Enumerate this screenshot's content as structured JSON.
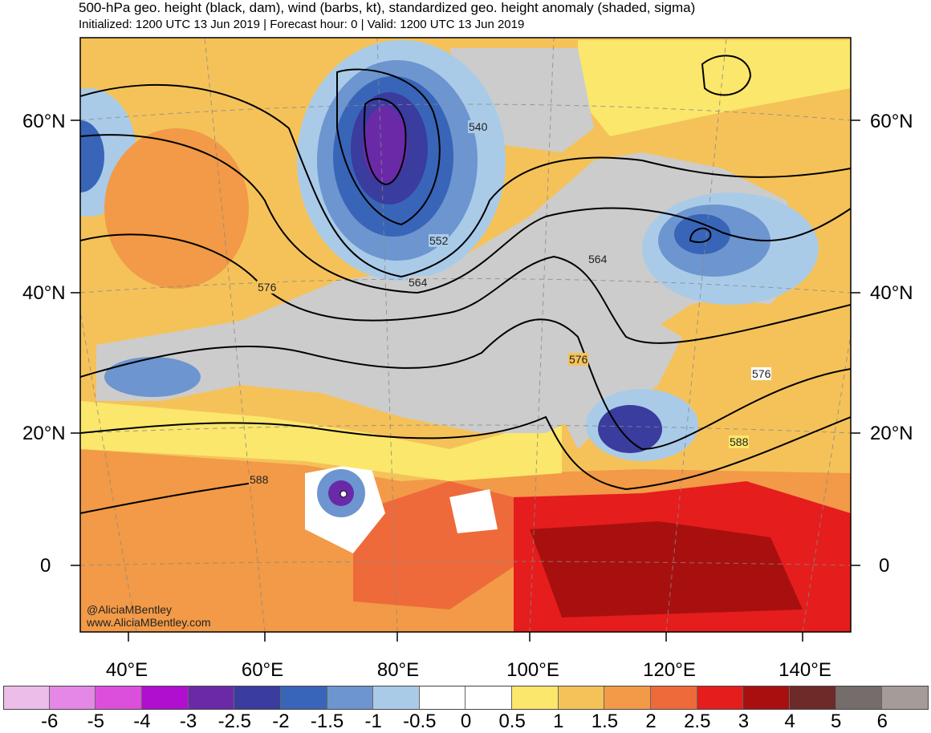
{
  "header": {
    "title": "500-hPa geo. height (black, dam), wind (barbs, kt), standardized geo. height anomaly (shaded, sigma)",
    "subtitle": "Initialized: 1200 UTC 13 Jun 2019 | Forecast hour: 0 | Valid: 1200 UTC 13 Jun 2019"
  },
  "lat_labels": [
    "60°N",
    "40°N",
    "20°N",
    "0"
  ],
  "lon_labels": [
    "40°E",
    "60°E",
    "80°E",
    "100°E",
    "120°E",
    "140°E"
  ],
  "contour_labels": [
    "540",
    "552",
    "564",
    "576",
    "564",
    "576",
    "576",
    "588",
    "588"
  ],
  "credits": [
    "@AliciaMBentley",
    "www.AliciaMBentley.com"
  ],
  "colorbar": {
    "labels": [
      "-6",
      "-5",
      "-4",
      "-3",
      "-2.5",
      "-2",
      "-1.5",
      "-1",
      "-0.5",
      "0",
      "0.5",
      "1",
      "1.5",
      "2",
      "2.5",
      "3",
      "4",
      "5",
      "6"
    ],
    "colors": [
      "#ebbde8",
      "#e487e6",
      "#dc4fdd",
      "#b10fcf",
      "#6a2aa8",
      "#3a3c9e",
      "#3865b8",
      "#6d95cf",
      "#a9cbe8",
      "#ffffff",
      "#ffffff",
      "#fbe76b",
      "#f5c25a",
      "#f29a47",
      "#ee6a3a",
      "#e51d1d",
      "#a8100f",
      "#6e2a28",
      "#756d6b",
      "#a59b98"
    ]
  },
  "colors": {
    "gray_background": "#cccccc",
    "positive_yellow": "#fbe76b",
    "negative_purple": "#6a2aa8"
  }
}
